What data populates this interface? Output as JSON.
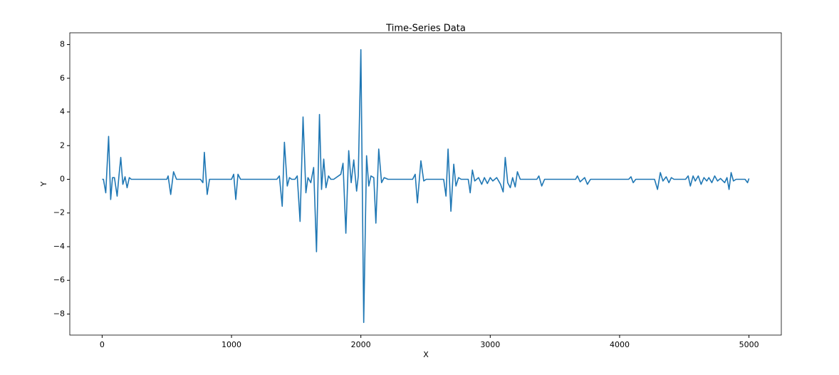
{
  "chart_data": {
    "type": "line",
    "title": "Time-Series Data",
    "x_label": "X",
    "y_label": "Y",
    "color": "#1f77b4",
    "x": [
      0,
      10,
      28,
      50,
      66,
      80,
      95,
      116,
      130,
      144,
      160,
      177,
      193,
      210,
      225,
      500,
      510,
      530,
      552,
      575,
      760,
      779,
      790,
      812,
      830,
      1000,
      1017,
      1033,
      1050,
      1070,
      1350,
      1370,
      1392,
      1409,
      1431,
      1448,
      1465,
      1490,
      1508,
      1530,
      1553,
      1575,
      1591,
      1613,
      1635,
      1657,
      1680,
      1696,
      1713,
      1730,
      1750,
      1768,
      1790,
      1845,
      1862,
      1884,
      1906,
      1925,
      1945,
      1967,
      1980,
      2000,
      2022,
      2044,
      2061,
      2078,
      2100,
      2116,
      2138,
      2160,
      2180,
      2210,
      2400,
      2420,
      2437,
      2464,
      2486,
      2505,
      2640,
      2658,
      2674,
      2696,
      2718,
      2735,
      2755,
      2775,
      2830,
      2845,
      2862,
      2880,
      2910,
      2934,
      2955,
      2978,
      3000,
      3020,
      3050,
      3080,
      3100,
      3116,
      3135,
      3155,
      3173,
      3193,
      3210,
      3232,
      3360,
      3376,
      3398,
      3420,
      3660,
      3674,
      3695,
      3730,
      3751,
      3775,
      4070,
      4088,
      4105,
      4125,
      4270,
      4293,
      4315,
      4335,
      4360,
      4381,
      4400,
      4420,
      4510,
      4530,
      4547,
      4568,
      4585,
      4608,
      4630,
      4652,
      4674,
      4690,
      4713,
      4735,
      4757,
      4780,
      4812,
      4830,
      4846,
      4862,
      4880,
      4900,
      4970,
      4989,
      5000
    ],
    "values": [
      0,
      0,
      -0.8,
      2.55,
      -1.2,
      0.1,
      0.1,
      -1.0,
      0.2,
      1.3,
      -0.3,
      0.15,
      -0.5,
      0.1,
      0,
      0,
      0.2,
      -0.9,
      0.45,
      0,
      0,
      -0.2,
      1.6,
      -0.9,
      0,
      0,
      0.3,
      -1.2,
      0.3,
      0,
      0,
      0.2,
      -1.6,
      2.2,
      -0.4,
      0.1,
      0,
      0,
      0.2,
      -2.5,
      3.7,
      -0.8,
      0.1,
      -0.2,
      0.7,
      -4.3,
      3.85,
      -0.6,
      1.2,
      -0.5,
      0.2,
      0,
      0,
      0.3,
      0.95,
      -3.2,
      1.7,
      -0.2,
      1.15,
      -0.7,
      0.2,
      7.7,
      -8.5,
      1.4,
      -0.4,
      0.2,
      0.1,
      -2.6,
      1.8,
      -0.2,
      0.1,
      0,
      0,
      0.3,
      -1.4,
      1.1,
      -0.1,
      0,
      0,
      -1.0,
      1.8,
      -1.9,
      0.9,
      -0.4,
      0.1,
      0,
      0,
      -0.8,
      0.55,
      -0.1,
      0.1,
      -0.3,
      0.1,
      -0.25,
      0.1,
      -0.1,
      0.1,
      -0.3,
      -0.75,
      1.3,
      -0.2,
      -0.5,
      0.1,
      -0.45,
      0.45,
      0,
      0,
      0.2,
      -0.4,
      0,
      0,
      0.2,
      -0.15,
      0.1,
      -0.3,
      0,
      0,
      0.15,
      -0.2,
      0,
      0,
      -0.6,
      0.4,
      -0.1,
      0.15,
      -0.2,
      0.1,
      0,
      0,
      0.2,
      -0.4,
      0.2,
      -0.1,
      0.2,
      -0.3,
      0.1,
      -0.1,
      0.1,
      -0.2,
      0.2,
      -0.1,
      0.05,
      -0.2,
      0.1,
      -0.6,
      0.4,
      -0.1,
      0,
      0,
      -0.2,
      0.05
    ],
    "xlim": [
      -250,
      5250
    ],
    "xticks": [
      0,
      1000,
      2000,
      3000,
      4000,
      5000
    ],
    "ylim": [
      -9.25,
      8.7
    ],
    "yticks": [
      {
        "value": -8,
        "label": "−8"
      },
      {
        "value": -6,
        "label": "−6"
      },
      {
        "value": -4,
        "label": "−4"
      },
      {
        "value": -2,
        "label": "−2"
      },
      0,
      2,
      4,
      6,
      8
    ]
  }
}
